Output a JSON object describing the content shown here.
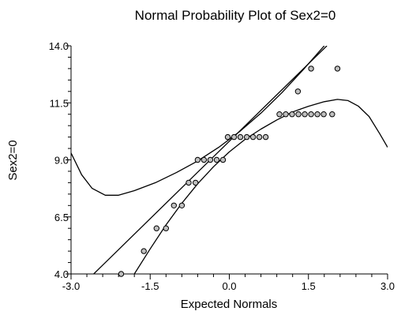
{
  "chart_data": {
    "type": "scatter",
    "title": "Normal Probability Plot of Sex2=0",
    "xlabel": "Expected Normals",
    "ylabel": "Sex2=0",
    "xlim": [
      -3.0,
      3.0
    ],
    "ylim": [
      4.0,
      14.0
    ],
    "x_ticks": [
      "-3.0",
      "-1.5",
      "0.0",
      "1.5",
      "3.0"
    ],
    "y_ticks": [
      "4.0",
      "6.5",
      "9.0",
      "11.5",
      "14.0"
    ],
    "grid": false,
    "legend": "none",
    "points": [
      {
        "x": -2.05,
        "y": 4.0
      },
      {
        "x": -1.62,
        "y": 5.0
      },
      {
        "x": -1.38,
        "y": 6.0
      },
      {
        "x": -1.2,
        "y": 6.0
      },
      {
        "x": -1.05,
        "y": 7.0
      },
      {
        "x": -0.9,
        "y": 7.0
      },
      {
        "x": -0.77,
        "y": 8.0
      },
      {
        "x": -0.64,
        "y": 8.0
      },
      {
        "x": -0.6,
        "y": 9.0
      },
      {
        "x": -0.48,
        "y": 9.0
      },
      {
        "x": -0.36,
        "y": 9.0
      },
      {
        "x": -0.24,
        "y": 9.0
      },
      {
        "x": -0.12,
        "y": 9.0
      },
      {
        "x": -0.03,
        "y": 10.0
      },
      {
        "x": 0.09,
        "y": 10.0
      },
      {
        "x": 0.21,
        "y": 10.0
      },
      {
        "x": 0.33,
        "y": 10.0
      },
      {
        "x": 0.45,
        "y": 10.0
      },
      {
        "x": 0.57,
        "y": 10.0
      },
      {
        "x": 0.69,
        "y": 10.0
      },
      {
        "x": 0.95,
        "y": 11.0
      },
      {
        "x": 1.07,
        "y": 11.0
      },
      {
        "x": 1.19,
        "y": 11.0
      },
      {
        "x": 1.31,
        "y": 11.0
      },
      {
        "x": 1.43,
        "y": 11.0
      },
      {
        "x": 1.55,
        "y": 11.0
      },
      {
        "x": 1.67,
        "y": 11.0
      },
      {
        "x": 1.79,
        "y": 11.0
      },
      {
        "x": 1.95,
        "y": 11.0
      },
      {
        "x": 1.3,
        "y": 12.0
      },
      {
        "x": 1.55,
        "y": 13.0
      },
      {
        "x": 2.05,
        "y": 13.0
      }
    ],
    "fit_line": [
      {
        "x": -2.57,
        "y": 4.0
      },
      {
        "x": 1.85,
        "y": 14.0
      }
    ],
    "upper_band": [
      {
        "x": -3.0,
        "y": 9.3
      },
      {
        "x": -2.8,
        "y": 8.35
      },
      {
        "x": -2.6,
        "y": 7.75
      },
      {
        "x": -2.35,
        "y": 7.45
      },
      {
        "x": -2.1,
        "y": 7.45
      },
      {
        "x": -1.8,
        "y": 7.65
      },
      {
        "x": -1.4,
        "y": 8.0
      },
      {
        "x": -1.0,
        "y": 8.45
      },
      {
        "x": -0.6,
        "y": 8.95
      },
      {
        "x": -0.2,
        "y": 9.55
      },
      {
        "x": 0.2,
        "y": 10.25
      },
      {
        "x": 0.6,
        "y": 11.05
      },
      {
        "x": 1.0,
        "y": 11.95
      },
      {
        "x": 1.4,
        "y": 12.95
      },
      {
        "x": 1.8,
        "y": 14.0
      }
    ],
    "lower_band": [
      {
        "x": -1.8,
        "y": 4.0
      },
      {
        "x": -1.5,
        "y": 5.1
      },
      {
        "x": -1.2,
        "y": 6.15
      },
      {
        "x": -0.9,
        "y": 7.1
      },
      {
        "x": -0.6,
        "y": 7.95
      },
      {
        "x": -0.3,
        "y": 8.7
      },
      {
        "x": 0.0,
        "y": 9.35
      },
      {
        "x": 0.3,
        "y": 9.9
      },
      {
        "x": 0.6,
        "y": 10.35
      },
      {
        "x": 0.9,
        "y": 10.75
      },
      {
        "x": 1.2,
        "y": 11.1
      },
      {
        "x": 1.5,
        "y": 11.35
      },
      {
        "x": 1.8,
        "y": 11.55
      },
      {
        "x": 2.05,
        "y": 11.65
      },
      {
        "x": 2.25,
        "y": 11.6
      },
      {
        "x": 2.45,
        "y": 11.35
      },
      {
        "x": 2.65,
        "y": 10.9
      },
      {
        "x": 2.85,
        "y": 10.15
      },
      {
        "x": 3.0,
        "y": 9.55
      }
    ]
  }
}
